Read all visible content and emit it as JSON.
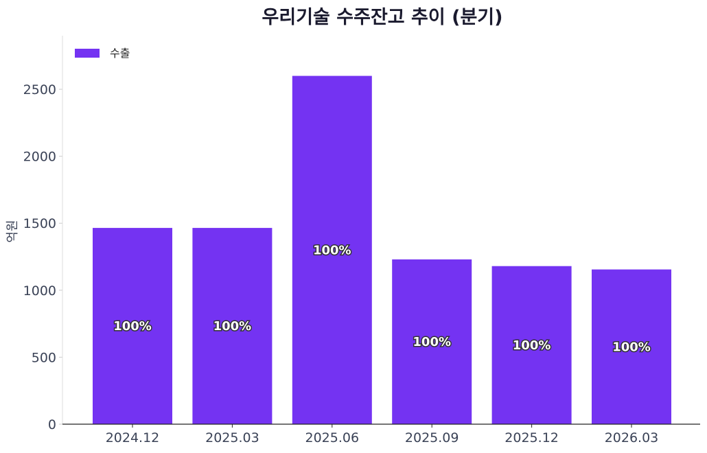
{
  "chart_data": {
    "type": "bar",
    "title": "우리기술 수주잔고 추이 (분기)",
    "xlabel": "",
    "ylabel": "억원",
    "categories": [
      "2024.12",
      "2025.03",
      "2025.06",
      "2025.09",
      "2025.12",
      "2026.03"
    ],
    "series": [
      {
        "name": "수출",
        "values": [
          1465,
          1465,
          2600,
          1230,
          1180,
          1155
        ],
        "labels": [
          "100%",
          "100%",
          "100%",
          "100%",
          "100%",
          "100%"
        ]
      }
    ],
    "ylim": [
      0,
      2900
    ],
    "yticks": [
      0,
      500,
      1000,
      1500,
      2000,
      2500
    ],
    "grid": false,
    "legend": "top-left",
    "colors": {
      "bar": "#7433f2",
      "axis": "#222222",
      "text": "#3a4256"
    }
  }
}
